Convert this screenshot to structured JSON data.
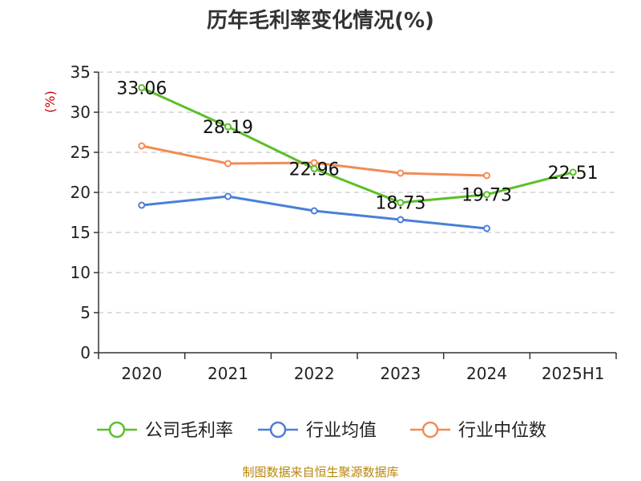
{
  "chart_data": {
    "type": "line",
    "title": "历年毛利率变化情况(%)",
    "ylabel": "(%)",
    "xlabel": "",
    "categories": [
      "2020",
      "2021",
      "2022",
      "2023",
      "2024",
      "2025H1"
    ],
    "ylim": [
      0,
      35
    ],
    "yticks": [
      "0",
      "5",
      "10",
      "15",
      "20",
      "25",
      "30",
      "35"
    ],
    "grid": true,
    "legend_position": "bottom",
    "series": [
      {
        "name": "公司毛利率",
        "color": "#5cbf2a",
        "values": [
          33.06,
          28.19,
          22.96,
          18.73,
          19.73,
          22.51
        ],
        "labels": [
          "33.06",
          "28.19",
          "22.96",
          "18.73",
          "19.73",
          "22.51"
        ]
      },
      {
        "name": "行业均值",
        "color": "#4a7fd6",
        "values": [
          18.4,
          19.5,
          17.7,
          16.6,
          15.5,
          null
        ]
      },
      {
        "name": "行业中位数",
        "color": "#f08c55",
        "values": [
          25.8,
          23.6,
          23.7,
          22.4,
          22.1,
          null
        ]
      }
    ]
  },
  "source": "制图数据来自恒生聚源数据库"
}
